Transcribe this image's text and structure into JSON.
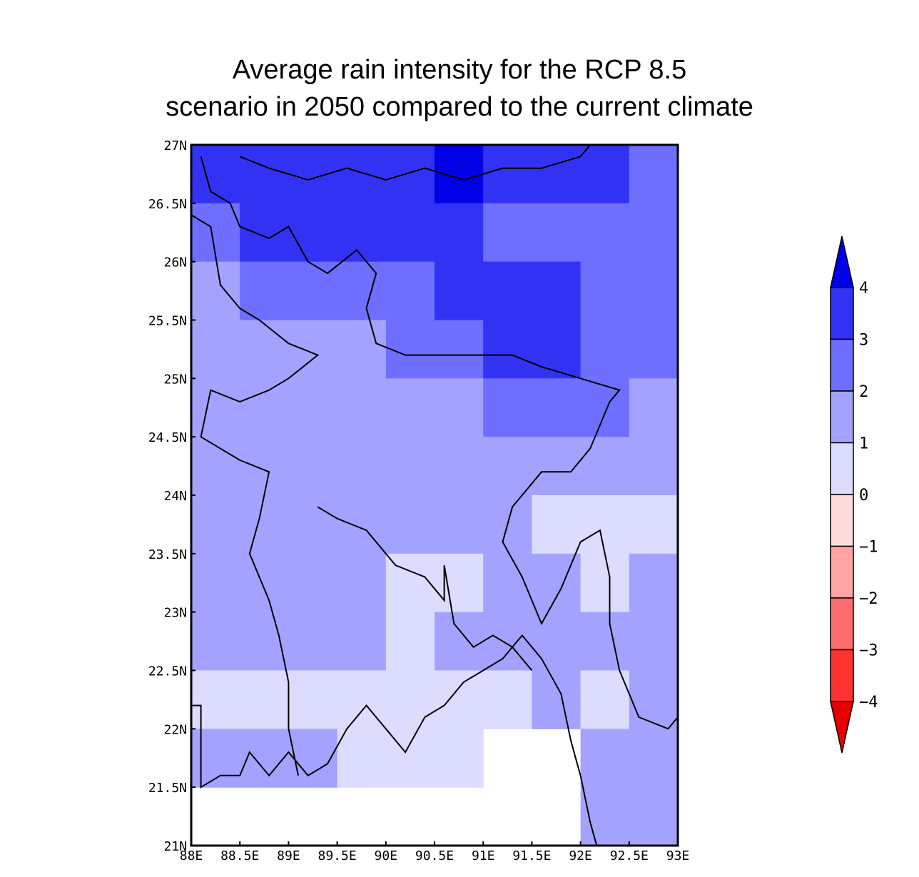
{
  "chart_data": {
    "type": "heatmap",
    "title_lines": [
      "Average rain intensity for the RCP 8.5",
      "scenario in 2050 compared to the current climate"
    ],
    "x_ticks": [
      "88E",
      "88.5E",
      "89E",
      "89.5E",
      "90E",
      "90.5E",
      "91E",
      "91.5E",
      "92E",
      "92.5E",
      "93E"
    ],
    "y_ticks": [
      "27N",
      "26.5N",
      "26N",
      "25.5N",
      "25N",
      "24.5N",
      "24N",
      "23.5N",
      "23N",
      "22.5N",
      "22N",
      "21.5N",
      "21N"
    ],
    "x_range": [
      88,
      93
    ],
    "y_range": [
      21,
      27
    ],
    "grid_step_lon": 0.5,
    "grid_step_lat": 0.5,
    "colorbar": {
      "labels": [
        "4",
        "3",
        "2",
        "1",
        "0",
        "−1",
        "−2",
        "−3",
        "−4"
      ],
      "bins": [
        {
          "min": 4,
          "max": null,
          "color": "#0000e6"
        },
        {
          "min": 3,
          "max": 4,
          "color": "#3232f5"
        },
        {
          "min": 2,
          "max": 3,
          "color": "#6e6eff"
        },
        {
          "min": 1,
          "max": 2,
          "color": "#a3a3ff"
        },
        {
          "min": 0,
          "max": 1,
          "color": "#dcdcff"
        },
        {
          "min": -1,
          "max": 0,
          "color": "#ffdcdc"
        },
        {
          "min": -2,
          "max": -1,
          "color": "#ffa3a3"
        },
        {
          "min": -3,
          "max": -2,
          "color": "#ff6e6e"
        },
        {
          "min": -4,
          "max": -3,
          "color": "#ff3232"
        },
        {
          "min": null,
          "max": -4,
          "color": "#e60000"
        }
      ]
    },
    "lon_centers": [
      88.25,
      88.75,
      89.25,
      89.75,
      90.25,
      90.75,
      91.25,
      91.75,
      92.25,
      92.75
    ],
    "lat_centers_north_to_south": [
      26.75,
      26.25,
      25.75,
      25.25,
      24.75,
      24.25,
      23.75,
      23.25,
      22.75,
      22.25,
      21.75,
      21.25
    ],
    "values": [
      [
        3.5,
        3.5,
        3.5,
        3.5,
        3.5,
        4.5,
        3.5,
        3.5,
        3.5,
        2.5
      ],
      [
        2.5,
        3.5,
        3.5,
        3.5,
        3.5,
        3.5,
        2.5,
        2.5,
        2.5,
        2.5
      ],
      [
        1.5,
        2.5,
        2.5,
        2.5,
        2.5,
        3.5,
        3.5,
        3.5,
        2.5,
        2.5
      ],
      [
        1.5,
        1.5,
        1.5,
        1.5,
        2.5,
        2.5,
        3.5,
        3.5,
        2.5,
        2.5
      ],
      [
        1.5,
        1.5,
        1.5,
        1.5,
        1.5,
        1.5,
        2.5,
        2.5,
        2.5,
        1.5
      ],
      [
        1.5,
        1.5,
        1.5,
        1.5,
        1.5,
        1.5,
        1.5,
        1.5,
        1.5,
        1.5
      ],
      [
        1.5,
        1.5,
        1.5,
        1.5,
        1.5,
        1.5,
        1.5,
        0.5,
        0.5,
        0.5
      ],
      [
        1.5,
        1.5,
        1.5,
        1.5,
        0.5,
        0.5,
        1.5,
        1.5,
        0.5,
        1.5
      ],
      [
        1.5,
        1.5,
        1.5,
        1.5,
        0.5,
        1.5,
        1.5,
        1.5,
        1.5,
        1.5
      ],
      [
        0.5,
        0.5,
        0.5,
        0.5,
        0.5,
        0.5,
        0.5,
        1.5,
        0.5,
        1.5
      ],
      [
        1.5,
        1.5,
        1.5,
        0.5,
        0.5,
        0.5,
        null,
        null,
        1.5,
        1.5
      ],
      [
        null,
        null,
        null,
        null,
        null,
        null,
        null,
        null,
        1.5,
        1.5
      ]
    ],
    "boundary_lines": [
      [
        [
          88.0,
          22.2
        ],
        [
          88.1,
          22.2
        ],
        [
          88.1,
          21.5
        ],
        [
          88.3,
          21.6
        ],
        [
          88.5,
          21.6
        ],
        [
          88.6,
          21.8
        ],
        [
          88.8,
          21.6
        ],
        [
          88.9,
          21.7
        ],
        [
          89.0,
          21.8
        ],
        [
          89.2,
          21.6
        ],
        [
          89.4,
          21.7
        ],
        [
          89.6,
          22.0
        ],
        [
          89.8,
          22.2
        ],
        [
          90.0,
          22.0
        ],
        [
          90.2,
          21.8
        ],
        [
          90.4,
          22.1
        ],
        [
          90.6,
          22.2
        ],
        [
          90.8,
          22.4
        ],
        [
          91.0,
          22.5
        ],
        [
          91.2,
          22.6
        ],
        [
          91.4,
          22.8
        ],
        [
          91.6,
          22.6
        ],
        [
          91.8,
          22.3
        ],
        [
          91.9,
          21.9
        ],
        [
          92.0,
          21.6
        ],
        [
          92.1,
          21.2
        ],
        [
          92.2,
          20.9
        ]
      ],
      [
        [
          88.0,
          26.4
        ],
        [
          88.2,
          26.3
        ],
        [
          88.3,
          25.8
        ],
        [
          88.5,
          25.6
        ],
        [
          88.7,
          25.5
        ],
        [
          89.0,
          25.3
        ],
        [
          89.3,
          25.2
        ],
        [
          89.0,
          25.0
        ],
        [
          88.8,
          24.9
        ],
        [
          88.5,
          24.8
        ],
        [
          88.2,
          24.9
        ],
        [
          88.1,
          24.5
        ],
        [
          88.5,
          24.3
        ],
        [
          88.8,
          24.2
        ],
        [
          88.7,
          23.8
        ],
        [
          88.6,
          23.5
        ],
        [
          88.8,
          23.1
        ],
        [
          88.9,
          22.8
        ],
        [
          89.0,
          22.4
        ],
        [
          89.0,
          22.0
        ],
        [
          89.1,
          21.6
        ]
      ],
      [
        [
          88.1,
          26.9
        ],
        [
          88.2,
          26.6
        ],
        [
          88.4,
          26.5
        ],
        [
          88.5,
          26.3
        ],
        [
          88.8,
          26.2
        ],
        [
          89.0,
          26.3
        ],
        [
          89.2,
          26.0
        ],
        [
          89.4,
          25.9
        ],
        [
          89.7,
          26.1
        ],
        [
          89.9,
          25.9
        ],
        [
          89.8,
          25.6
        ],
        [
          89.9,
          25.3
        ],
        [
          90.2,
          25.2
        ],
        [
          90.5,
          25.2
        ],
        [
          90.9,
          25.2
        ],
        [
          91.3,
          25.2
        ],
        [
          91.6,
          25.1
        ],
        [
          92.0,
          25.0
        ],
        [
          92.4,
          24.9
        ],
        [
          92.3,
          24.8
        ],
        [
          92.1,
          24.4
        ],
        [
          91.9,
          24.2
        ],
        [
          91.6,
          24.2
        ],
        [
          91.3,
          23.9
        ],
        [
          91.2,
          23.6
        ],
        [
          91.4,
          23.3
        ],
        [
          91.6,
          22.9
        ],
        [
          91.8,
          23.2
        ],
        [
          92.0,
          23.6
        ],
        [
          92.2,
          23.7
        ],
        [
          92.3,
          23.3
        ],
        [
          92.3,
          22.9
        ],
        [
          92.4,
          22.5
        ],
        [
          92.6,
          22.1
        ],
        [
          92.9,
          22.0
        ],
        [
          93.0,
          22.1
        ]
      ],
      [
        [
          89.3,
          23.9
        ],
        [
          89.5,
          23.8
        ],
        [
          89.8,
          23.7
        ],
        [
          90.1,
          23.4
        ],
        [
          90.4,
          23.3
        ],
        [
          90.6,
          23.1
        ],
        [
          90.6,
          23.4
        ],
        [
          90.7,
          22.9
        ],
        [
          90.9,
          22.7
        ],
        [
          91.1,
          22.8
        ],
        [
          91.3,
          22.7
        ],
        [
          91.5,
          22.5
        ]
      ],
      [
        [
          88.5,
          26.9
        ],
        [
          88.8,
          26.8
        ],
        [
          89.2,
          26.7
        ],
        [
          89.6,
          26.8
        ],
        [
          90.0,
          26.7
        ],
        [
          90.4,
          26.8
        ],
        [
          90.8,
          26.7
        ],
        [
          91.2,
          26.8
        ],
        [
          91.6,
          26.8
        ],
        [
          92.0,
          26.9
        ],
        [
          92.1,
          27.0
        ]
      ]
    ]
  }
}
